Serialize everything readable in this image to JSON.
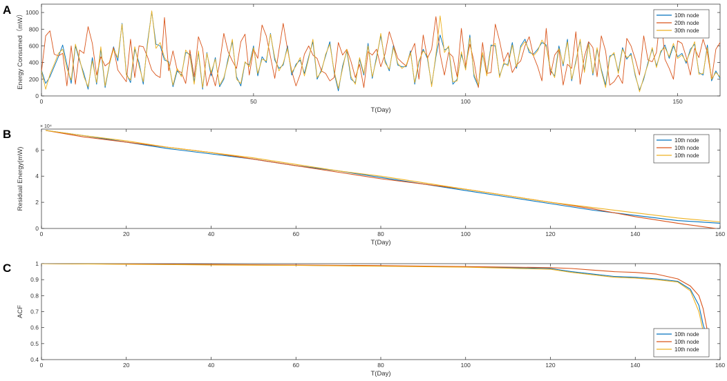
{
  "chart_data": [
    {
      "panel": "A",
      "type": "line",
      "xlabel": "T(Day)",
      "ylabel": "Energy Consumed（mW）",
      "xlim": [
        0,
        160
      ],
      "ylim": [
        0,
        1100
      ],
      "xticks": [
        0,
        50,
        100,
        150
      ],
      "yticks": [
        0,
        200,
        400,
        600,
        800,
        1000
      ],
      "legend_position": "top-right",
      "colors": [
        "#0072BD",
        "#D95319",
        "#EDB120"
      ],
      "series": [
        {
          "name": "10th node",
          "values": [
            310,
            150,
            230,
            350,
            470,
            610,
            380,
            150,
            600,
            420,
            270,
            80,
            460,
            140,
            560,
            100,
            370,
            590,
            420,
            870,
            270,
            160,
            560,
            400,
            140,
            640,
            1010,
            620,
            600,
            430,
            410,
            110,
            300,
            250,
            520,
            500,
            170,
            520,
            80,
            520,
            240,
            460,
            110,
            200,
            450,
            650,
            230,
            120,
            400,
            370,
            600,
            240,
            470,
            400,
            750,
            430,
            330,
            370,
            600,
            250,
            380,
            430,
            270,
            470,
            650,
            200,
            310,
            480,
            650,
            280,
            60,
            360,
            540,
            200,
            160,
            440,
            250,
            630,
            210,
            470,
            720,
            430,
            300,
            610,
            370,
            350,
            350,
            540,
            140,
            400,
            560,
            450,
            130,
            470,
            730,
            550,
            580,
            140,
            200,
            500,
            330,
            730,
            230,
            110,
            500,
            260,
            610,
            600,
            240,
            380,
            380,
            640,
            330,
            600,
            680,
            520,
            500,
            560,
            640,
            610,
            300,
            240,
            600,
            360,
            680,
            180,
            420,
            660,
            300,
            640,
            250,
            560,
            320,
            130,
            480,
            500,
            290,
            580,
            440,
            510,
            240,
            70,
            200,
            400,
            560,
            360,
            520,
            610,
            450,
            600,
            470,
            510,
            390,
            560,
            620,
            280,
            250,
            610,
            180,
            300,
            210,
            120,
            520,
            50,
            600,
            250,
            280
          ]
        },
        {
          "name": "20th node",
          "values": [
            290,
            720,
            780,
            500,
            480,
            510,
            120,
            600,
            140,
            550,
            510,
            830,
            630,
            250,
            470,
            360,
            400,
            580,
            310,
            240,
            170,
            680,
            220,
            600,
            590,
            470,
            310,
            250,
            220,
            940,
            300,
            540,
            310,
            280,
            150,
            550,
            230,
            710,
            570,
            120,
            300,
            120,
            390,
            750,
            530,
            420,
            330,
            650,
            740,
            250,
            560,
            450,
            850,
            720,
            470,
            210,
            550,
            870,
            560,
            300,
            120,
            260,
            500,
            600,
            490,
            450,
            300,
            270,
            180,
            220,
            640,
            490,
            560,
            410,
            220,
            380,
            100,
            530,
            490,
            560,
            350,
            500,
            770,
            610,
            450,
            400,
            360,
            510,
            630,
            200,
            730,
            450,
            560,
            950,
            500,
            250,
            520,
            470,
            230,
            810,
            360,
            620,
            410,
            100,
            640,
            270,
            280,
            860,
            660,
            410,
            520,
            280,
            370,
            420,
            600,
            710,
            480,
            350,
            180,
            810,
            250,
            490,
            560,
            130,
            380,
            330,
            770,
            140,
            470,
            650,
            580,
            230,
            720,
            540,
            130,
            170,
            250,
            150,
            690,
            600,
            440,
            250,
            720,
            430,
            410,
            520,
            1010,
            440,
            330,
            200,
            660,
            630,
            470,
            250,
            570,
            460,
            680,
            520,
            200,
            560,
            640,
            750
          ]
        },
        {
          "name": "30th node",
          "values": [
            300,
            80,
            260,
            380,
            510,
            560,
            330,
            190,
            620,
            440,
            230,
            110,
            420,
            160,
            590,
            120,
            380,
            560,
            460,
            860,
            250,
            190,
            590,
            360,
            170,
            610,
            1020,
            570,
            640,
            460,
            390,
            130,
            330,
            230,
            550,
            480,
            140,
            540,
            100,
            510,
            280,
            440,
            130,
            220,
            420,
            680,
            200,
            150,
            410,
            350,
            580,
            270,
            440,
            420,
            740,
            460,
            300,
            390,
            570,
            280,
            360,
            460,
            240,
            450,
            680,
            220,
            290,
            500,
            620,
            300,
            90,
            330,
            560,
            230,
            140,
            460,
            270,
            600,
            230,
            440,
            750,
            400,
            320,
            580,
            390,
            330,
            370,
            520,
            160,
            420,
            540,
            480,
            110,
            500,
            960,
            520,
            600,
            170,
            180,
            530,
            310,
            700,
            260,
            130,
            520,
            240,
            590,
            630,
            220,
            400,
            360,
            610,
            350,
            580,
            650,
            550,
            480,
            540,
            670,
            590,
            330,
            220,
            570,
            380,
            650,
            200,
            400,
            680,
            280,
            620,
            270,
            580,
            300,
            100,
            460,
            520,
            270,
            560,
            460,
            490,
            260,
            50,
            220,
            380,
            580,
            340,
            540,
            580,
            470,
            630,
            450,
            490,
            410,
            530,
            650,
            260,
            270,
            580,
            200,
            280,
            230,
            100,
            540,
            70,
            620,
            230,
            300
          ]
        }
      ]
    },
    {
      "panel": "B",
      "type": "line",
      "xlabel": "T(Day)",
      "ylabel": "Residual Energy(mW)",
      "y_exponent": "× 10⁴",
      "xlim": [
        0,
        160
      ],
      "ylim": [
        0,
        7.6
      ],
      "xticks": [
        0,
        20,
        40,
        60,
        80,
        100,
        120,
        140,
        160
      ],
      "yticks": [
        0,
        2,
        4,
        6
      ],
      "legend_position": "top-right",
      "colors": [
        "#0072BD",
        "#D95319",
        "#EDB120"
      ],
      "series": [
        {
          "name": "10th node",
          "x": [
            1,
            10,
            20,
            30,
            40,
            50,
            60,
            70,
            80,
            90,
            100,
            110,
            120,
            130,
            140,
            150,
            160
          ],
          "values": [
            7.5,
            7.1,
            6.6,
            6.1,
            5.7,
            5.3,
            4.8,
            4.4,
            3.9,
            3.4,
            2.9,
            2.4,
            1.9,
            1.4,
            1.0,
            0.6,
            0.4
          ]
        },
        {
          "name": "10th node",
          "x": [
            1,
            10,
            20,
            30,
            40,
            50,
            60,
            70,
            80,
            90,
            100,
            110,
            120,
            130,
            140,
            150,
            159
          ],
          "values": [
            7.5,
            7.0,
            6.6,
            6.2,
            5.8,
            5.3,
            4.8,
            4.3,
            3.8,
            3.4,
            3.0,
            2.5,
            2.0,
            1.5,
            0.9,
            0.4,
            0.0
          ]
        },
        {
          "name": "10th node",
          "x": [
            1,
            10,
            20,
            30,
            40,
            50,
            60,
            70,
            80,
            90,
            100,
            110,
            120,
            130,
            140,
            150,
            160
          ],
          "values": [
            7.5,
            7.1,
            6.7,
            6.2,
            5.8,
            5.4,
            4.9,
            4.4,
            4.0,
            3.5,
            3.0,
            2.5,
            2.0,
            1.6,
            1.2,
            0.8,
            0.5
          ]
        }
      ]
    },
    {
      "panel": "C",
      "type": "line",
      "xlabel": "T(Day)",
      "ylabel": "ACF",
      "xlim": [
        0,
        160
      ],
      "ylim": [
        0.4,
        1.0
      ],
      "xticks": [
        0,
        20,
        40,
        60,
        80,
        100,
        120,
        140,
        160
      ],
      "yticks": [
        0.4,
        0.5,
        0.6,
        0.7,
        0.8,
        0.9,
        1
      ],
      "legend_position": "bottom-right",
      "colors": [
        "#0072BD",
        "#D95319",
        "#EDB120"
      ],
      "series": [
        {
          "name": "10th node",
          "x": [
            0,
            20,
            40,
            60,
            80,
            100,
            120,
            125,
            130,
            135,
            140,
            145,
            150,
            153,
            155,
            156,
            157
          ],
          "values": [
            1.0,
            0.997,
            0.993,
            0.99,
            0.985,
            0.98,
            0.97,
            0.95,
            0.935,
            0.92,
            0.915,
            0.905,
            0.89,
            0.84,
            0.74,
            0.62,
            0.53
          ]
        },
        {
          "name": "10th node",
          "x": [
            0,
            20,
            40,
            60,
            80,
            100,
            120,
            125,
            130,
            135,
            140,
            145,
            150,
            153,
            155,
            156,
            157
          ],
          "values": [
            1.0,
            0.998,
            0.995,
            0.992,
            0.988,
            0.982,
            0.975,
            0.97,
            0.96,
            0.95,
            0.945,
            0.935,
            0.905,
            0.86,
            0.8,
            0.72,
            0.58
          ]
        },
        {
          "name": "10th node",
          "x": [
            0,
            20,
            40,
            60,
            80,
            100,
            120,
            125,
            130,
            135,
            140,
            145,
            150,
            153,
            155,
            156,
            157
          ],
          "values": [
            1.0,
            0.996,
            0.992,
            0.989,
            0.984,
            0.978,
            0.965,
            0.945,
            0.93,
            0.915,
            0.91,
            0.9,
            0.885,
            0.83,
            0.7,
            0.58,
            0.49
          ]
        }
      ]
    }
  ]
}
